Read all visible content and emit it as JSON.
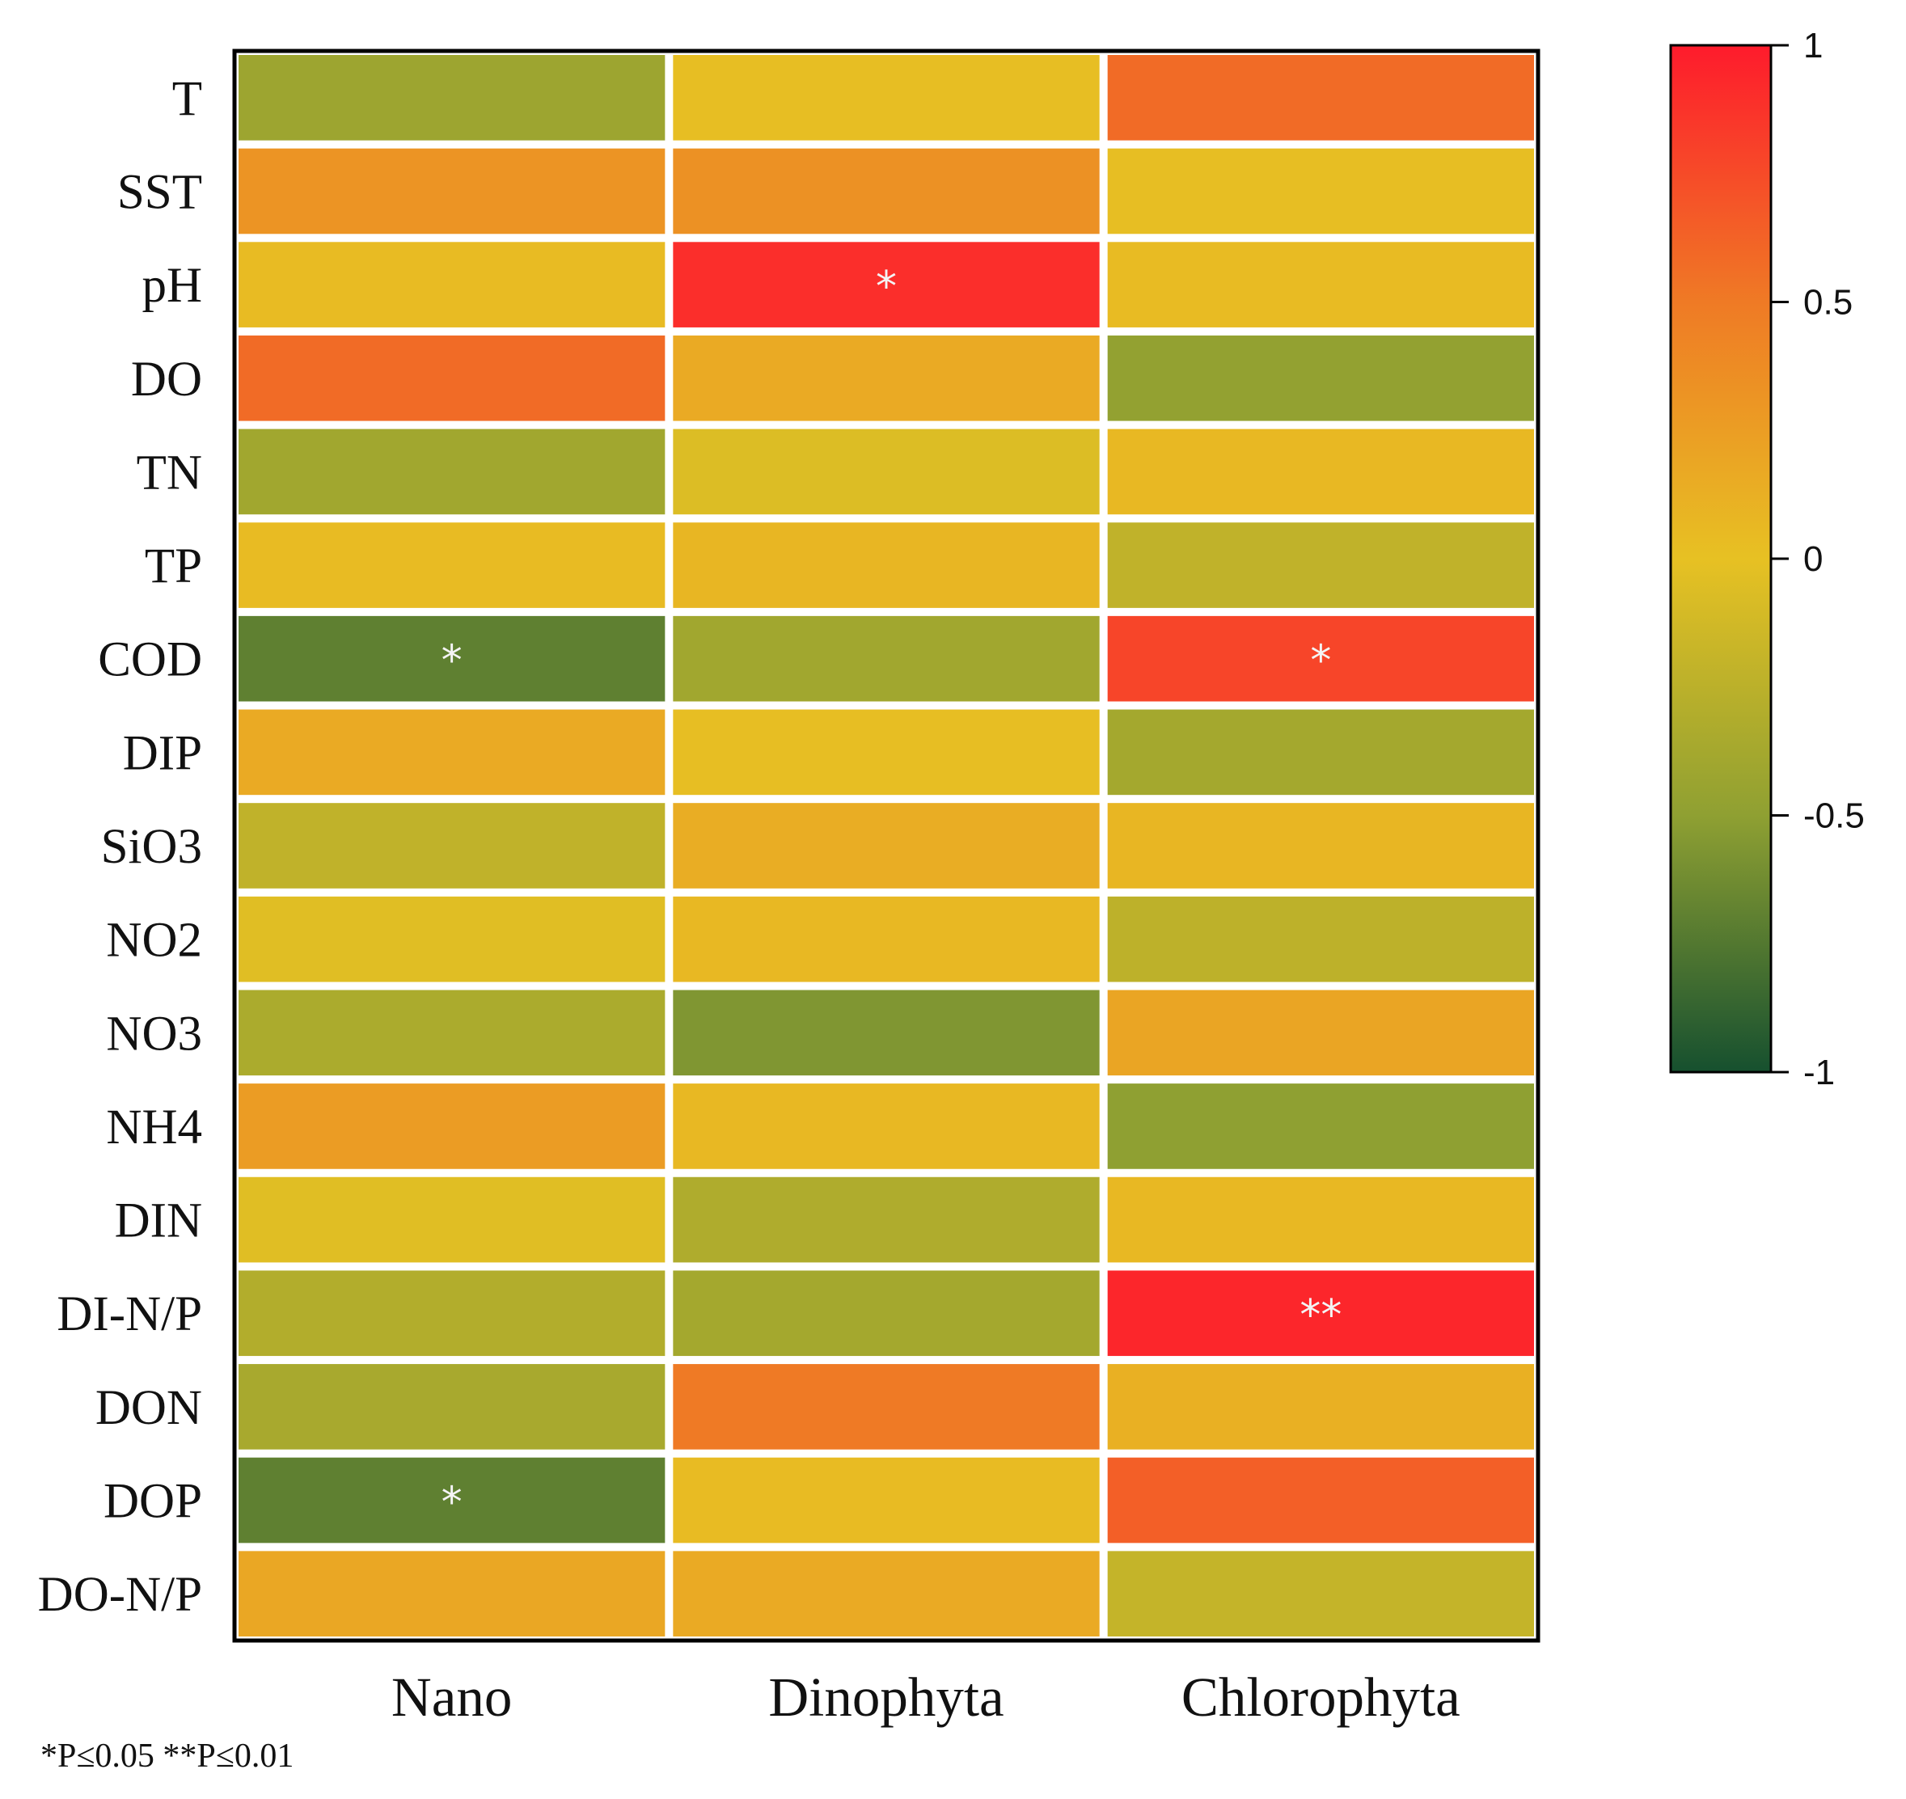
{
  "chart_data": {
    "type": "heatmap",
    "rows": [
      "T",
      "SST",
      "pH",
      "DO",
      "TN",
      "TP",
      "COD",
      "DIP",
      "SiO3",
      "NO2",
      "NO3",
      "NH4",
      "DIN",
      "DI-N/P",
      "DON",
      "DOP",
      "DO-N/P"
    ],
    "columns": [
      "Nano",
      "Dinophyta",
      "Chlorophyta"
    ],
    "values": [
      [
        -0.42,
        0.02,
        0.58
      ],
      [
        0.32,
        0.34,
        0.02
      ],
      [
        0.04,
        0.9,
        0.04
      ],
      [
        0.58,
        0.16,
        -0.48
      ],
      [
        -0.4,
        -0.06,
        0.06
      ],
      [
        0.04,
        0.08,
        -0.22
      ],
      [
        -0.7,
        -0.4,
        0.78
      ],
      [
        0.16,
        0.02,
        -0.38
      ],
      [
        -0.22,
        0.14,
        0.08
      ],
      [
        -0.04,
        0.06,
        -0.24
      ],
      [
        -0.34,
        -0.56,
        0.2
      ],
      [
        0.26,
        0.06,
        -0.5
      ],
      [
        -0.04,
        -0.32,
        0.06
      ],
      [
        -0.3,
        -0.38,
        0.94
      ],
      [
        -0.36,
        0.5,
        0.12
      ],
      [
        -0.7,
        0.04,
        0.64
      ],
      [
        0.18,
        0.16,
        -0.2
      ]
    ],
    "significance": [
      [
        "",
        "",
        ""
      ],
      [
        "",
        "",
        ""
      ],
      [
        "",
        "*",
        ""
      ],
      [
        "",
        "",
        ""
      ],
      [
        "",
        "",
        ""
      ],
      [
        "",
        "",
        ""
      ],
      [
        "*",
        "",
        "*"
      ],
      [
        "",
        "",
        ""
      ],
      [
        "",
        "",
        ""
      ],
      [
        "",
        "",
        ""
      ],
      [
        "",
        "",
        ""
      ],
      [
        "",
        "",
        ""
      ],
      [
        "",
        "",
        ""
      ],
      [
        "",
        "",
        "**"
      ],
      [
        "",
        "",
        ""
      ],
      [
        "*",
        "",
        ""
      ],
      [
        "",
        "",
        ""
      ]
    ],
    "colorbar": {
      "range": [
        -1,
        1
      ],
      "ticks": [
        "1",
        "0.5",
        "0",
        "-0.5",
        "-1"
      ],
      "colors": {
        "-1": "#16502f",
        "-0.5": "#8fa032",
        "0": "#e7c123",
        "0.5": "#ef7a25",
        "1": "#fe1b2c"
      }
    },
    "footnote": "*P≤0.05 **P≤0.01"
  }
}
